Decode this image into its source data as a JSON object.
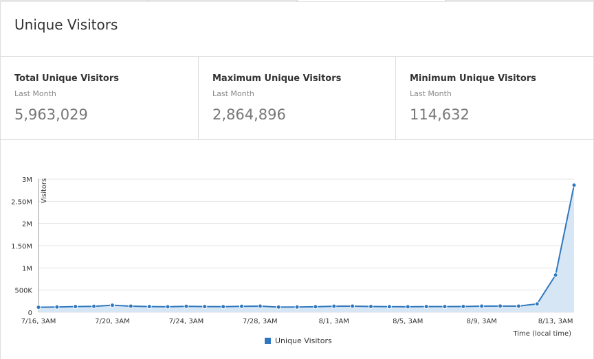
{
  "panel": {
    "title": "Unique Visitors"
  },
  "stats": [
    {
      "label": "Total Unique Visitors",
      "period": "Last Month",
      "value": "5,963,029"
    },
    {
      "label": "Maximum Unique Visitors",
      "period": "Last Month",
      "value": "2,864,896"
    },
    {
      "label": "Minimum Unique Visitors",
      "period": "Last Month",
      "value": "114,632"
    }
  ],
  "colors": {
    "line": "#2f78bd",
    "area": "#d6e6f5",
    "grid": "#e6e6e6"
  },
  "chart_data": {
    "type": "area",
    "title": "",
    "ylabel": "Visitors",
    "xlabel": "Time (local time)",
    "ylim": [
      0,
      3000000
    ],
    "yticks": [
      0,
      500000,
      1000000,
      1500000,
      2000000,
      2500000,
      3000000
    ],
    "ytick_labels": [
      "0",
      "500K",
      "1M",
      "1.50M",
      "2M",
      "2.50M",
      "3M"
    ],
    "xtick_indices": [
      0,
      4,
      8,
      12,
      16,
      20,
      24,
      28
    ],
    "xtick_labels": [
      "7/16, 3AM",
      "7/20, 3AM",
      "7/24, 3AM",
      "7/28, 3AM",
      "8/1, 3AM",
      "8/5, 3AM",
      "8/9, 3AM",
      "8/13, 3AM"
    ],
    "grid": true,
    "legend_position": "bottom",
    "series": [
      {
        "name": "Unique Visitors",
        "values": [
          114632,
          120000,
          130000,
          135000,
          160000,
          140000,
          130000,
          125000,
          135000,
          130000,
          128000,
          135000,
          140000,
          118000,
          120000,
          125000,
          138000,
          140000,
          132000,
          128000,
          126000,
          130000,
          129000,
          131000,
          140000,
          142000,
          140000,
          190000,
          840000,
          2864896
        ]
      }
    ]
  }
}
